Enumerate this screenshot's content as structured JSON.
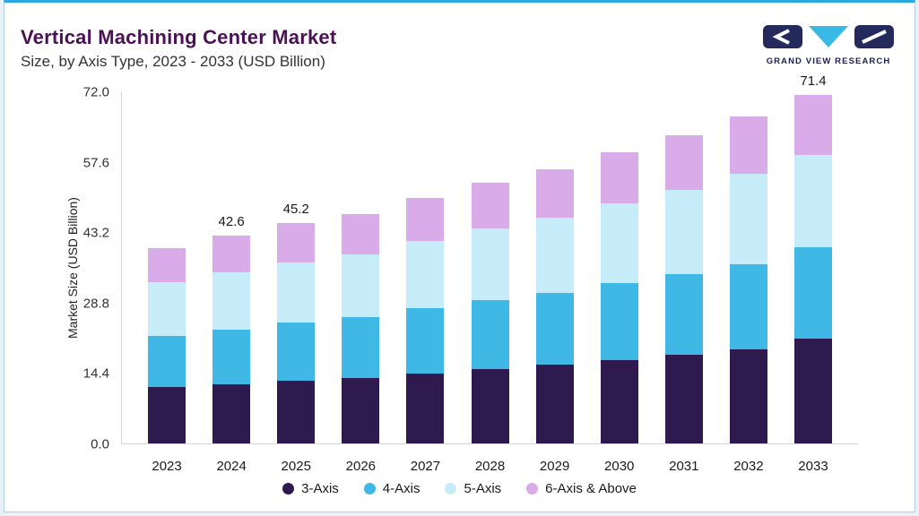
{
  "header": {
    "title": "Vertical Machining Center Market",
    "subtitle": "Size, by Axis Type, 2023 - 2033 (USD Billion)",
    "logo_text": "GRAND VIEW RESEARCH"
  },
  "theme": {
    "accent_line": "#2aa9e1",
    "title_color": "#4a1254",
    "page_background": "#e8f1f7",
    "logo_navy": "#252a5c",
    "logo_cyan": "#39b9e6"
  },
  "chart_data": {
    "type": "bar",
    "stacked": true,
    "title": "Vertical Machining Center Market",
    "subtitle": "Size, by Axis Type, 2023 - 2033 (USD Billion)",
    "xlabel": "",
    "ylabel": "Market Size (USD Billion)",
    "ylim": [
      0,
      72
    ],
    "yticks": [
      72.0,
      57.6,
      43.2,
      28.8,
      14.4,
      0.0
    ],
    "grid": false,
    "legend_position": "bottom",
    "categories": [
      "2023",
      "2024",
      "2025",
      "2026",
      "2027",
      "2028",
      "2029",
      "2030",
      "2031",
      "2032",
      "2033"
    ],
    "series": [
      {
        "name": "3-Axis",
        "color": "#2e1a4e",
        "values": [
          11.5,
          12.2,
          12.9,
          13.5,
          14.4,
          15.3,
          16.1,
          17.1,
          18.1,
          19.2,
          21.5
        ]
      },
      {
        "name": "4-Axis",
        "color": "#3fb8e5",
        "values": [
          10.5,
          11.2,
          11.9,
          12.4,
          13.3,
          14.1,
          14.8,
          15.7,
          16.6,
          17.6,
          18.8
        ]
      },
      {
        "name": "5-Axis",
        "color": "#c6ebf9",
        "values": [
          11.0,
          11.7,
          12.4,
          12.9,
          13.8,
          14.6,
          15.4,
          16.4,
          17.3,
          18.4,
          18.9
        ]
      },
      {
        "name": "6-Axis & Above",
        "color": "#d9abe8",
        "values": [
          7.0,
          7.5,
          8.0,
          8.3,
          8.9,
          9.4,
          9.9,
          10.5,
          11.1,
          11.8,
          12.2
        ]
      }
    ],
    "bar_total_labels": [
      "",
      "42.6",
      "45.2",
      "",
      "",
      "",
      "",
      "",
      "",
      "",
      "71.4"
    ]
  }
}
